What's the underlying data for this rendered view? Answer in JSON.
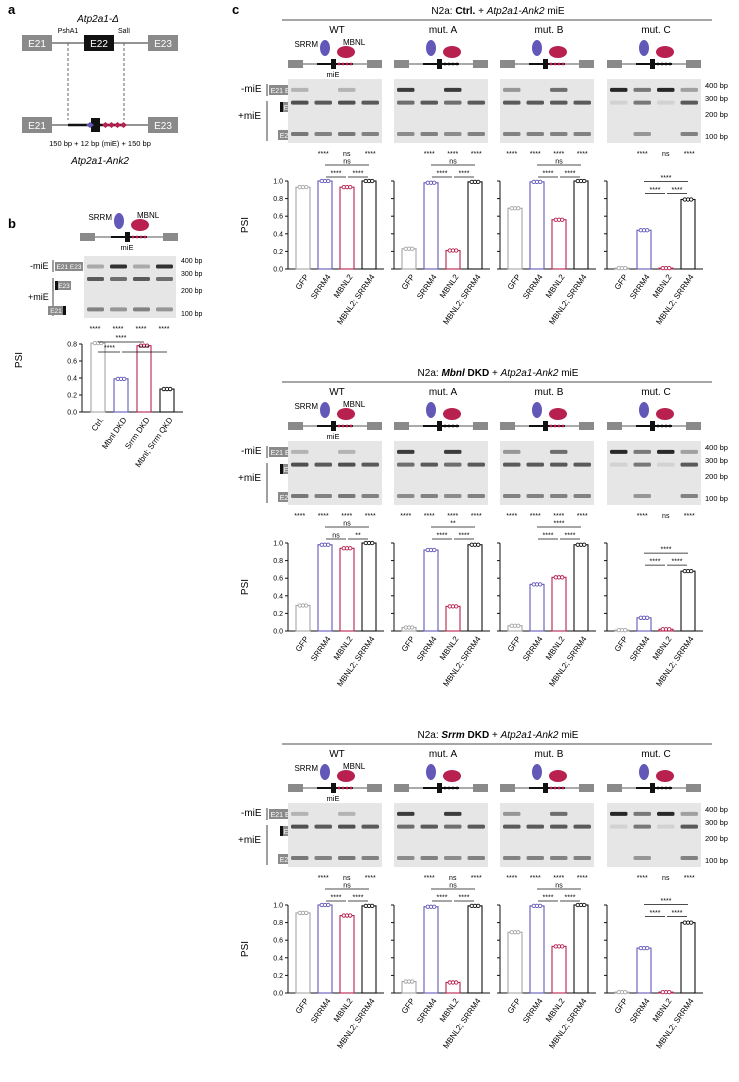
{
  "panel_a": {
    "label": "a",
    "title": "Atp2a1-Δ",
    "exon_left": "E21",
    "exon_mid": "E22",
    "exon_right": "E23",
    "site_left": "PshA1",
    "site_right": "SalI",
    "caption": "150 bp + 12 bp (miE) + 150 bp",
    "construct": "Atp2a1-Ank2"
  },
  "common": {
    "srrm_label": "SRRM",
    "mbnl_label": "MBNL",
    "mie_label": "miE",
    "minus_mie": "-miE",
    "plus_mie": "+miE",
    "band_e21e23": "E21 E23",
    "band_e23": "E23",
    "band_e21": "E21",
    "bp400": "400 bp",
    "bp300": "300 bp",
    "bp200": "200 bp",
    "bp100": "100 bp",
    "psi": "PSI",
    "yticks": [
      "0.0",
      "0.2",
      "0.4",
      "0.6",
      "0.8",
      "1.0"
    ]
  },
  "panel_b": {
    "label": "b",
    "gel_sig": [
      "****",
      "****",
      "****",
      "****"
    ],
    "bar_sig": [
      "****",
      "****",
      "****"
    ],
    "categories": [
      "Ctrl.",
      "Mbnl DKD",
      "Srrm DKD",
      "Mbnl; Srrm QKD"
    ],
    "yticks": [
      "0.0",
      "0.2",
      "0.4",
      "0.6",
      "0.8"
    ]
  },
  "panel_c": {
    "label": "c",
    "rows": [
      {
        "title_pre": "N2a: ",
        "title_bold": "Ctrl.",
        "title_post": " + ",
        "title_ital": "Atp2a1-Ank2",
        "title_end": " miE",
        "groups": [
          {
            "name": "WT",
            "gel_sig": [
              "****",
              "ns",
              "****"
            ],
            "comp_sig": [
              "ns",
              "****",
              "****"
            ]
          },
          {
            "name": "mut. A",
            "gel_sig": [
              "****",
              "****",
              "****"
            ],
            "comp_sig": [
              "ns",
              "****",
              "****"
            ]
          },
          {
            "name": "mut. B",
            "gel_sig": [
              "****",
              "****",
              "****",
              "****"
            ],
            "comp_sig": [
              "ns",
              "****",
              "****"
            ]
          },
          {
            "name": "mut. C",
            "gel_sig": [
              "****",
              "ns",
              "****"
            ],
            "comp_sig": [
              "****",
              "****",
              "****"
            ]
          }
        ]
      },
      {
        "title_pre": "N2a: ",
        "title_bold": "Mbnl",
        "title_bold2": " DKD",
        "title_post": " + ",
        "title_ital": "Atp2a1-Ank2",
        "title_end": " miE",
        "groups": [
          {
            "name": "WT",
            "gel_sig": [
              "****",
              "****",
              "****",
              "****"
            ],
            "comp_sig": [
              "ns",
              "ns",
              "**"
            ]
          },
          {
            "name": "mut. A",
            "gel_sig": [
              "****",
              "****",
              "****",
              "****"
            ],
            "comp_sig": [
              "**",
              "****",
              "****"
            ]
          },
          {
            "name": "mut. B",
            "gel_sig": [
              "****",
              "****",
              "****",
              "****"
            ],
            "comp_sig": [
              "****",
              "****",
              "****"
            ]
          },
          {
            "name": "mut. C",
            "gel_sig": [
              "****",
              "ns",
              "****"
            ],
            "comp_sig": [
              "****",
              "****",
              "****"
            ]
          }
        ]
      },
      {
        "title_pre": "N2a: ",
        "title_bold": "Srrm",
        "title_bold2": " DKD",
        "title_post": " + ",
        "title_ital": "Atp2a1-Ank2",
        "title_end": " miE",
        "groups": [
          {
            "name": "WT",
            "gel_sig": [
              "****",
              "ns",
              "****"
            ],
            "comp_sig": [
              "ns",
              "****",
              "****"
            ]
          },
          {
            "name": "mut. A",
            "gel_sig": [
              "****",
              "ns",
              "****"
            ],
            "comp_sig": [
              "ns",
              "****",
              "****"
            ]
          },
          {
            "name": "mut. B",
            "gel_sig": [
              "****",
              "****",
              "****",
              "****"
            ],
            "comp_sig": [
              "ns",
              "****",
              "****"
            ]
          },
          {
            "name": "mut. C",
            "gel_sig": [
              "****",
              "ns",
              "****"
            ],
            "comp_sig": [
              "****",
              "****",
              "****"
            ]
          }
        ]
      }
    ],
    "categories": [
      "GFP",
      "SRRM4",
      "MBNL2",
      "MBNL2; SRRM4"
    ]
  },
  "chart_data": [
    {
      "type": "bar",
      "title": "Panel b",
      "ylabel": "PSI",
      "ylim": [
        0,
        0.8
      ],
      "categories": [
        "Ctrl.",
        "Mbnl DKD",
        "Srrm DKD",
        "Mbnl; Srrm QKD"
      ],
      "values": [
        0.81,
        0.39,
        0.78,
        0.27
      ]
    },
    {
      "type": "bar",
      "title": "N2a: Ctrl. + Atp2a1-Ank2 miE",
      "ylabel": "PSI",
      "ylim": [
        0,
        1.0
      ],
      "categories": [
        "GFP",
        "SRRM4",
        "MBNL2",
        "MBNL2; SRRM4"
      ],
      "series": [
        {
          "name": "WT",
          "values": [
            0.93,
            1.0,
            0.93,
            1.0
          ]
        },
        {
          "name": "mut. A",
          "values": [
            0.23,
            0.98,
            0.21,
            0.99
          ]
        },
        {
          "name": "mut. B",
          "values": [
            0.69,
            0.99,
            0.56,
            1.0
          ]
        },
        {
          "name": "mut. C",
          "values": [
            0.01,
            0.44,
            0.01,
            0.79
          ]
        }
      ]
    },
    {
      "type": "bar",
      "title": "N2a: Mbnl DKD + Atp2a1-Ank2 miE",
      "ylabel": "PSI",
      "ylim": [
        0,
        1.0
      ],
      "categories": [
        "GFP",
        "SRRM4",
        "MBNL2",
        "MBNL2; SRRM4"
      ],
      "series": [
        {
          "name": "WT",
          "values": [
            0.29,
            0.98,
            0.94,
            1.0
          ]
        },
        {
          "name": "mut. A",
          "values": [
            0.04,
            0.92,
            0.28,
            0.98
          ]
        },
        {
          "name": "mut. B",
          "values": [
            0.06,
            0.53,
            0.61,
            0.98
          ]
        },
        {
          "name": "mut. C",
          "values": [
            0.01,
            0.15,
            0.02,
            0.68
          ]
        }
      ]
    },
    {
      "type": "bar",
      "title": "N2a: Srrm DKD + Atp2a1-Ank2 miE",
      "ylabel": "PSI",
      "ylim": [
        0,
        1.0
      ],
      "categories": [
        "GFP",
        "SRRM4",
        "MBNL2",
        "MBNL2; SRRM4"
      ],
      "series": [
        {
          "name": "WT",
          "values": [
            0.91,
            1.0,
            0.88,
            0.99
          ]
        },
        {
          "name": "mut. A",
          "values": [
            0.13,
            0.98,
            0.12,
            0.99
          ]
        },
        {
          "name": "mut. B",
          "values": [
            0.69,
            0.99,
            0.53,
            1.0
          ]
        },
        {
          "name": "mut. C",
          "values": [
            0.01,
            0.51,
            0.01,
            0.8
          ]
        }
      ]
    }
  ]
}
